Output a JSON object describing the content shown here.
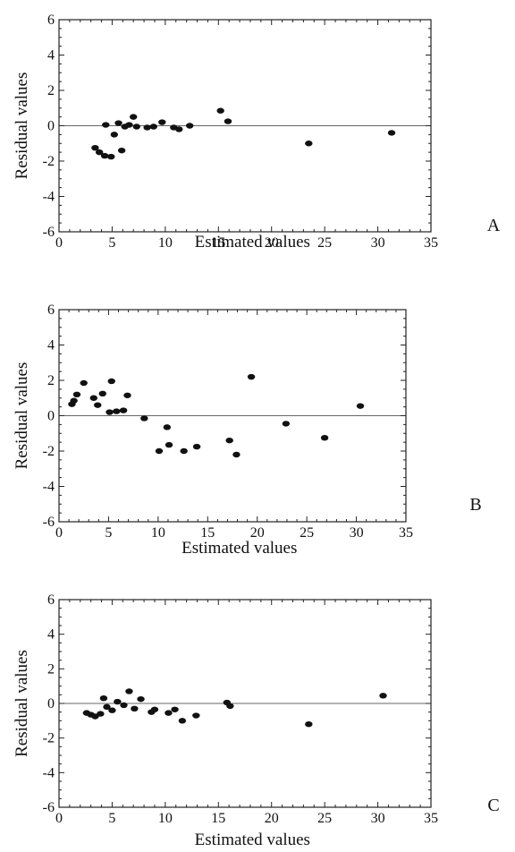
{
  "figure": {
    "panel_labels": [
      "A",
      "B",
      "C"
    ]
  },
  "chart_data": [
    {
      "type": "scatter",
      "panel_label": "A",
      "xlabel": "Estimated values",
      "ylabel": "Residual values",
      "xlim": [
        0,
        35
      ],
      "ylim": [
        -6,
        6
      ],
      "xticks": [
        0,
        5,
        10,
        15,
        20,
        25,
        30,
        35
      ],
      "yticks": [
        -6,
        -4,
        -2,
        0,
        2,
        4,
        6
      ],
      "reference_line_y": 0,
      "grid": false,
      "marker_color": "#111111",
      "points": [
        {
          "x": 3.4,
          "y": -1.25
        },
        {
          "x": 3.8,
          "y": -1.5
        },
        {
          "x": 4.3,
          "y": -1.7
        },
        {
          "x": 4.9,
          "y": -1.75
        },
        {
          "x": 4.4,
          "y": 0.05
        },
        {
          "x": 5.2,
          "y": -0.5
        },
        {
          "x": 5.6,
          "y": 0.15
        },
        {
          "x": 5.9,
          "y": -1.4
        },
        {
          "x": 6.2,
          "y": -0.05
        },
        {
          "x": 6.6,
          "y": 0.05
        },
        {
          "x": 7.0,
          "y": 0.5
        },
        {
          "x": 7.3,
          "y": -0.05
        },
        {
          "x": 8.3,
          "y": -0.1
        },
        {
          "x": 8.9,
          "y": -0.05
        },
        {
          "x": 9.7,
          "y": 0.2
        },
        {
          "x": 10.8,
          "y": -0.1
        },
        {
          "x": 11.3,
          "y": -0.2
        },
        {
          "x": 12.3,
          "y": 0.0
        },
        {
          "x": 15.2,
          "y": 0.85
        },
        {
          "x": 15.9,
          "y": 0.25
        },
        {
          "x": 23.5,
          "y": -1.0
        },
        {
          "x": 31.3,
          "y": -0.4
        }
      ]
    },
    {
      "type": "scatter",
      "panel_label": "B",
      "xlabel": "Estimated values",
      "ylabel": "Residual values",
      "xlim": [
        0,
        35
      ],
      "ylim": [
        -6,
        6
      ],
      "xticks": [
        0,
        5,
        10,
        15,
        20,
        25,
        30,
        35
      ],
      "yticks": [
        -6,
        -4,
        -2,
        0,
        2,
        4,
        6
      ],
      "reference_line_y": 0,
      "grid": false,
      "marker_color": "#111111",
      "points": [
        {
          "x": 1.3,
          "y": 0.65
        },
        {
          "x": 1.5,
          "y": 0.85
        },
        {
          "x": 1.8,
          "y": 1.2
        },
        {
          "x": 2.5,
          "y": 1.85
        },
        {
          "x": 3.5,
          "y": 1.0
        },
        {
          "x": 3.9,
          "y": 0.6
        },
        {
          "x": 4.4,
          "y": 1.25
        },
        {
          "x": 5.3,
          "y": 1.95
        },
        {
          "x": 5.1,
          "y": 0.2
        },
        {
          "x": 5.8,
          "y": 0.25
        },
        {
          "x": 6.5,
          "y": 0.3
        },
        {
          "x": 6.9,
          "y": 1.15
        },
        {
          "x": 8.6,
          "y": -0.15
        },
        {
          "x": 10.1,
          "y": -2.0
        },
        {
          "x": 10.9,
          "y": -0.65
        },
        {
          "x": 11.1,
          "y": -1.65
        },
        {
          "x": 12.6,
          "y": -2.0
        },
        {
          "x": 13.9,
          "y": -1.75
        },
        {
          "x": 17.2,
          "y": -1.4
        },
        {
          "x": 17.9,
          "y": -2.2
        },
        {
          "x": 19.4,
          "y": 2.2
        },
        {
          "x": 22.9,
          "y": -0.45
        },
        {
          "x": 26.8,
          "y": -1.25
        },
        {
          "x": 30.4,
          "y": 0.55
        }
      ]
    },
    {
      "type": "scatter",
      "panel_label": "C",
      "xlabel": "Estimated values",
      "ylabel": "Residual values",
      "xlim": [
        0,
        35
      ],
      "ylim": [
        -6,
        6
      ],
      "xticks": [
        0,
        5,
        10,
        15,
        20,
        25,
        30,
        35
      ],
      "yticks": [
        -6,
        -4,
        -2,
        0,
        2,
        4,
        6
      ],
      "reference_line_y": 0,
      "grid": false,
      "marker_color": "#111111",
      "points": [
        {
          "x": 2.6,
          "y": -0.55
        },
        {
          "x": 3.0,
          "y": -0.65
        },
        {
          "x": 3.4,
          "y": -0.75
        },
        {
          "x": 3.9,
          "y": -0.6
        },
        {
          "x": 4.2,
          "y": 0.3
        },
        {
          "x": 4.5,
          "y": -0.2
        },
        {
          "x": 5.0,
          "y": -0.4
        },
        {
          "x": 5.5,
          "y": 0.1
        },
        {
          "x": 6.1,
          "y": -0.1
        },
        {
          "x": 6.6,
          "y": 0.7
        },
        {
          "x": 7.1,
          "y": -0.3
        },
        {
          "x": 7.7,
          "y": 0.25
        },
        {
          "x": 8.7,
          "y": -0.5
        },
        {
          "x": 9.0,
          "y": -0.35
        },
        {
          "x": 10.3,
          "y": -0.55
        },
        {
          "x": 10.9,
          "y": -0.35
        },
        {
          "x": 11.6,
          "y": -1.0
        },
        {
          "x": 12.9,
          "y": -0.7
        },
        {
          "x": 15.8,
          "y": 0.05
        },
        {
          "x": 16.1,
          "y": -0.15
        },
        {
          "x": 23.5,
          "y": -1.2
        },
        {
          "x": 30.5,
          "y": 0.45
        }
      ]
    }
  ]
}
